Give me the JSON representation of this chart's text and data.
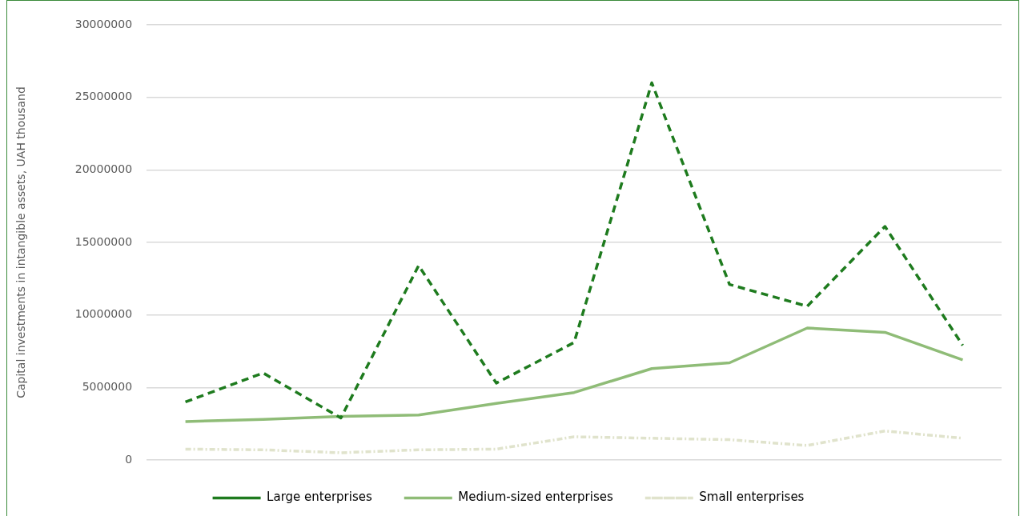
{
  "chart_data": {
    "type": "line",
    "ylabel": "Capital investments in intangible assets, UAH thousand",
    "categories": [
      null,
      null,
      null,
      null,
      null,
      null,
      null,
      null,
      null,
      null,
      null
    ],
    "series": [
      {
        "name": "Large enterprises",
        "color": "#1e7b1e",
        "line_style": "dashed",
        "values": [
          4000000,
          6000000,
          2900000,
          13400000,
          5300000,
          8100000,
          26000000,
          12100000,
          10600000,
          16100000,
          7900000
        ]
      },
      {
        "name": "Medium-sized enterprises",
        "color": "#8fbc77",
        "line_style": "solid",
        "values": [
          2650000,
          2800000,
          3000000,
          3100000,
          3900000,
          4650000,
          6300000,
          6700000,
          9100000,
          8800000,
          6900000
        ]
      },
      {
        "name": "Small enterprises",
        "color": "#e0e3cc",
        "line_style": "dotted",
        "values": [
          750000,
          700000,
          500000,
          700000,
          750000,
          1600000,
          1500000,
          1400000,
          1000000,
          2000000,
          1500000
        ]
      }
    ],
    "ylim": [
      0,
      30000000
    ],
    "yticks": [
      0,
      5000000,
      10000000,
      15000000,
      20000000,
      25000000,
      30000000
    ],
    "grid": "y",
    "legend": "bottom",
    "tick_labels": "y",
    "marker": "none"
  }
}
